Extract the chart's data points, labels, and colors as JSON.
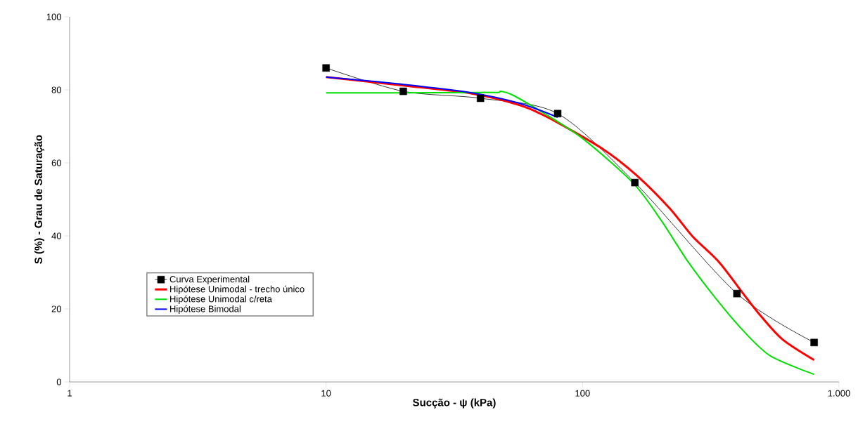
{
  "chart_data": {
    "type": "line",
    "xlabel": "Sucção - ψ (kPa)",
    "ylabel": "S (%) - Grau de Saturação",
    "log": "x",
    "xlim": [
      1,
      1000
    ],
    "xticks": [
      1,
      10,
      100,
      {
        "value": 1000,
        "label": "1.000"
      }
    ],
    "ylim": [
      0,
      100
    ],
    "yticks": [
      0,
      20,
      40,
      60,
      80,
      100
    ],
    "grid": false,
    "legend": "left",
    "line_style": "solid",
    "series": [
      {
        "name": "Curva Experimental",
        "color": "#000000",
        "marker": "square",
        "x": [
          10,
          20,
          40,
          80,
          160,
          400,
          800
        ],
        "values": [
          86,
          79.6,
          77.7,
          73.5,
          54.6,
          24.2,
          10.8
        ]
      },
      {
        "name": "Hipótese Unimodal - trecho único",
        "color": "#ff0000",
        "marker": "none",
        "x": [
          10,
          20,
          37,
          57,
          74,
          120,
          163,
          219,
          269,
          340,
          421,
          487,
          601,
          800
        ],
        "values": [
          83.5,
          81.2,
          79,
          75.8,
          72.3,
          63.8,
          56.5,
          47.5,
          39.8,
          32.9,
          24.4,
          18.7,
          11.7,
          6
        ]
      },
      {
        "name": "Hipótese Unimodal c/reta",
        "color": "#00e000",
        "marker": "none",
        "x": [
          10,
          20,
          40,
          47,
          48,
          53,
          70,
          100,
          157,
          202,
          258,
          334,
          421,
          541,
          800
        ],
        "values": [
          79.2,
          79.2,
          79.3,
          79.3,
          79.6,
          78.7,
          73.8,
          66.7,
          54.6,
          44.4,
          32.9,
          22.5,
          14.2,
          7.1,
          2.1
        ]
      },
      {
        "name": "Hipótese Bimodal",
        "color": "#0000ff",
        "marker": "none",
        "x": [
          10,
          20,
          37,
          57,
          80
        ],
        "values": [
          83.5,
          81.5,
          79.2,
          76.3,
          72.5
        ]
      }
    ]
  }
}
